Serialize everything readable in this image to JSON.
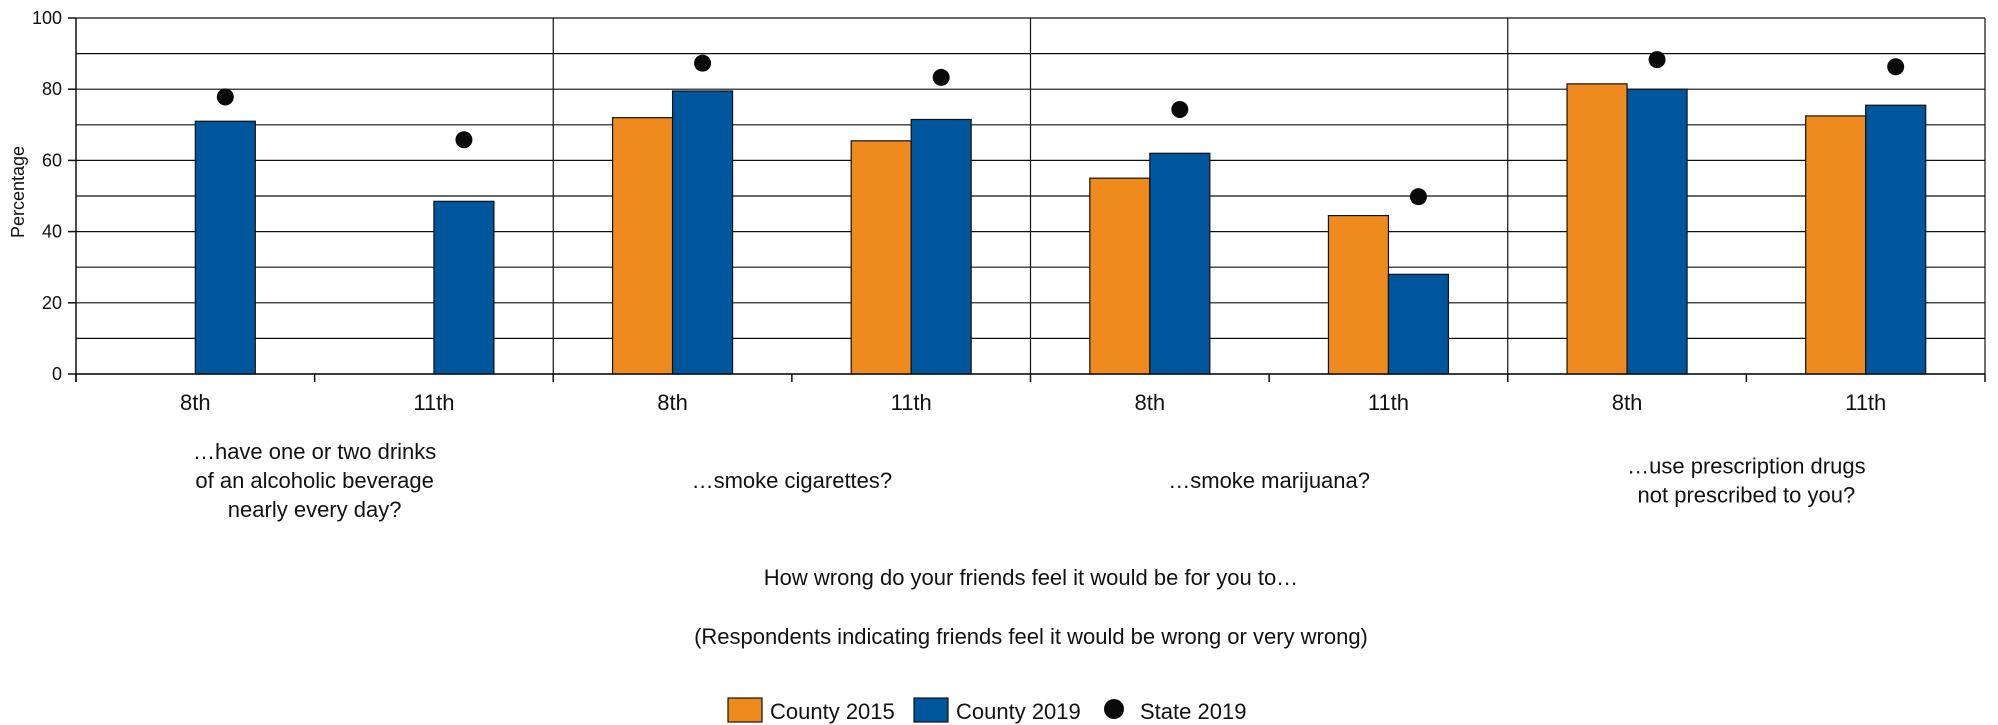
{
  "chart_data": {
    "type": "bar",
    "ylabel": "Percentage",
    "ylim": [
      0,
      100
    ],
    "yticks": [
      0,
      20,
      40,
      60,
      80,
      100
    ],
    "grid": true,
    "caption": "How wrong do your friends feel it would be for you to…",
    "subcaption": "(Respondents indicating friends feel it would be wrong or very wrong)",
    "legend_position": "bottom",
    "colors": {
      "County 2015": "#EE8A1E",
      "County 2019": "#00569C",
      "State 2019": "#0a0a0a"
    },
    "groups": [
      {
        "label_lines": [
          "…have one or two drinks",
          "of an alcoholic beverage",
          "nearly every day?"
        ],
        "categories": [
          {
            "label": "8th",
            "county_2015": null,
            "county_2019": 71,
            "state_2019": 75
          },
          {
            "label": "11th",
            "county_2015": null,
            "county_2019": 48.5,
            "state_2019": 63
          }
        ]
      },
      {
        "label_lines": [
          "…smoke cigarettes?"
        ],
        "categories": [
          {
            "label": "8th",
            "county_2015": 72,
            "county_2019": 79.5,
            "state_2019": 84.5
          },
          {
            "label": "11th",
            "county_2015": 65.5,
            "county_2019": 71.5,
            "state_2019": 80.5
          }
        ]
      },
      {
        "label_lines": [
          "…smoke marijuana?"
        ],
        "categories": [
          {
            "label": "8th",
            "county_2015": 55,
            "county_2019": 62,
            "state_2019": 71.5
          },
          {
            "label": "11th",
            "county_2015": 44.5,
            "county_2019": 28,
            "state_2019": 47
          }
        ]
      },
      {
        "label_lines": [
          "…use prescription drugs",
          "not prescribed to you?"
        ],
        "categories": [
          {
            "label": "8th",
            "county_2015": 81.5,
            "county_2019": 80,
            "state_2019": 85.5
          },
          {
            "label": "11th",
            "county_2015": 72.5,
            "county_2019": 75.5,
            "state_2019": 83.5
          }
        ]
      }
    ],
    "legend": [
      {
        "key": "county_2015",
        "label": "County 2015",
        "shape": "square"
      },
      {
        "key": "county_2019",
        "label": "County 2019",
        "shape": "square"
      },
      {
        "key": "state_2019",
        "label": "State 2019",
        "shape": "circle"
      }
    ]
  }
}
